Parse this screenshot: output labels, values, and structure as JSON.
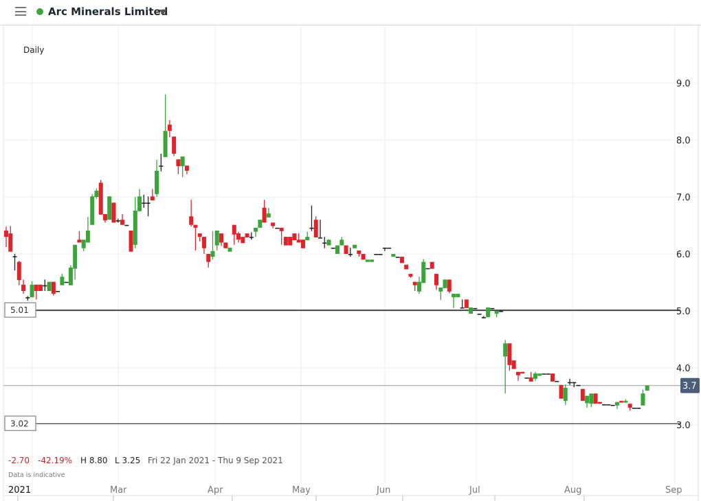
{
  "header": {
    "title": "Arc Minerals Limited",
    "status_color": "#3aa53a",
    "menu_icon": "hamburger-icon",
    "dropdown_icon": "caret-down-icon"
  },
  "chart_data": {
    "type": "candlestick",
    "interval_label": "Daily",
    "y_ticks": [
      "9.0",
      "8.0",
      "7.0",
      "6.0",
      "5.0",
      "4.0",
      "3.0"
    ],
    "ylim": [
      2.6,
      9.9
    ],
    "x_labels": [
      "2021",
      "Mar",
      "Apr",
      "May",
      "Jun",
      "Jul",
      "Aug",
      "Sep"
    ],
    "grid": true,
    "colors": {
      "up": "#3aa53a",
      "down": "#e0232b",
      "unchanged": "#222222",
      "current_price_badge": "#4b5d7a"
    },
    "horizontal_lines": [
      {
        "label": "5.01",
        "value": 5.01
      },
      {
        "label": "3.02",
        "value": 3.02
      }
    ],
    "current_price": {
      "label": "3.7",
      "value": 3.69
    },
    "stats": {
      "change": "-2.70",
      "change_pct": "-42.19%",
      "high": "H 8.80",
      "low": "L 3.25",
      "range": "Fri 22 Jan 2021 - Thu 9 Sep 2021"
    },
    "disclaimer": "Data is indicative",
    "columns": [
      "date",
      "open",
      "high",
      "low",
      "close"
    ],
    "candles": [
      [
        "2021-01-22",
        6.41,
        6.48,
        6.12,
        6.3
      ],
      [
        "2021-01-25",
        6.36,
        6.49,
        6.04,
        6.04
      ],
      [
        "2021-01-26",
        5.96,
        6.0,
        5.71,
        5.96
      ],
      [
        "2021-01-27",
        5.86,
        5.88,
        5.45,
        5.54
      ],
      [
        "2021-01-28",
        5.46,
        5.55,
        5.3,
        5.35
      ],
      [
        "2021-01-29",
        5.24,
        5.26,
        5.18,
        5.24
      ],
      [
        "2021-02-01",
        5.24,
        5.52,
        5.24,
        5.46
      ],
      [
        "2021-02-02",
        5.46,
        5.46,
        5.2,
        5.35
      ],
      [
        "2021-02-03",
        5.46,
        5.46,
        5.35,
        5.35
      ],
      [
        "2021-02-04",
        5.45,
        5.55,
        5.35,
        5.45
      ],
      [
        "2021-02-05",
        5.35,
        5.51,
        5.35,
        5.51
      ],
      [
        "2021-02-08",
        5.51,
        5.51,
        5.27,
        5.3
      ],
      [
        "2021-02-09",
        5.35,
        5.35,
        5.35,
        5.35
      ],
      [
        "2021-02-10",
        5.45,
        5.65,
        5.45,
        5.6
      ],
      [
        "2021-02-11",
        5.51,
        5.51,
        5.51,
        5.51
      ],
      [
        "2021-02-12",
        5.45,
        5.8,
        5.45,
        5.76
      ],
      [
        "2021-02-15",
        5.74,
        6.16,
        5.55,
        6.16
      ],
      [
        "2021-02-16",
        6.25,
        6.4,
        6.2,
        6.2
      ],
      [
        "2021-02-17",
        6.1,
        6.25,
        6.05,
        6.25
      ],
      [
        "2021-02-18",
        6.2,
        6.65,
        6.2,
        6.41
      ],
      [
        "2021-02-19",
        6.51,
        7.05,
        6.51,
        7.01
      ],
      [
        "2021-02-22",
        7.0,
        7.15,
        6.97,
        7.11
      ],
      [
        "2021-02-23",
        7.25,
        7.3,
        6.69,
        6.69
      ],
      [
        "2021-02-24",
        6.7,
        6.7,
        6.55,
        6.59
      ],
      [
        "2021-02-25",
        6.6,
        7.01,
        6.6,
        7.01
      ],
      [
        "2021-02-26",
        6.9,
        6.9,
        6.55,
        6.55
      ],
      [
        "2021-03-01",
        6.59,
        6.62,
        6.55,
        6.59
      ],
      [
        "2021-03-02",
        6.6,
        6.7,
        6.51,
        6.51
      ],
      [
        "2021-03-03",
        6.51,
        6.51,
        6.51,
        6.51
      ],
      [
        "2021-03-04",
        6.41,
        6.41,
        6.04,
        6.04
      ],
      [
        "2021-03-05",
        6.16,
        7.0,
        6.1,
        6.76
      ],
      [
        "2021-03-08",
        6.75,
        7.14,
        6.75,
        7.01
      ],
      [
        "2021-03-09",
        6.9,
        7.04,
        6.81,
        6.9
      ],
      [
        "2021-03-10",
        6.9,
        7.01,
        6.66,
        6.9
      ],
      [
        "2021-03-11",
        7.01,
        7.14,
        6.94,
        6.94
      ],
      [
        "2021-03-12",
        7.05,
        7.65,
        7.0,
        7.46
      ],
      [
        "2021-03-15",
        7.55,
        7.76,
        7.45,
        7.55
      ],
      [
        "2021-03-16",
        7.7,
        8.8,
        7.7,
        8.16
      ],
      [
        "2021-03-17",
        8.27,
        8.35,
        8.05,
        8.16
      ],
      [
        "2021-03-18",
        8.06,
        8.06,
        7.72,
        7.76
      ],
      [
        "2021-03-19",
        7.66,
        7.66,
        7.4,
        7.54
      ],
      [
        "2021-03-22",
        7.54,
        7.71,
        7.35,
        7.71
      ],
      [
        "2021-03-23",
        7.55,
        7.55,
        7.4,
        7.46
      ],
      [
        "2021-03-24",
        6.66,
        6.95,
        6.48,
        6.51
      ],
      [
        "2021-03-25",
        6.51,
        6.51,
        6.06,
        6.46
      ],
      [
        "2021-03-26",
        6.36,
        6.36,
        6.22,
        6.3
      ],
      [
        "2021-03-29",
        6.3,
        6.3,
        6.0,
        6.1
      ],
      [
        "2021-03-30",
        6.0,
        6.0,
        5.76,
        5.86
      ],
      [
        "2021-03-31",
        5.95,
        6.4,
        5.9,
        6.05
      ],
      [
        "2021-04-01",
        6.15,
        6.41,
        6.06,
        6.41
      ],
      [
        "2021-04-06",
        6.36,
        6.36,
        6.14,
        6.2
      ],
      [
        "2021-04-07",
        6.2,
        6.2,
        6.1,
        6.1
      ],
      [
        "2021-04-08",
        6.04,
        6.11,
        6.04,
        6.11
      ],
      [
        "2021-04-09",
        6.51,
        6.51,
        6.16,
        6.34
      ],
      [
        "2021-04-12",
        6.36,
        6.39,
        6.2,
        6.25
      ],
      [
        "2021-04-13",
        6.3,
        6.3,
        6.19,
        6.19
      ],
      [
        "2021-04-14",
        6.36,
        6.36,
        6.29,
        6.29
      ],
      [
        "2021-04-15",
        6.3,
        6.38,
        6.25,
        6.3
      ],
      [
        "2021-04-16",
        6.39,
        6.46,
        6.3,
        6.46
      ],
      [
        "2021-04-19",
        6.46,
        6.6,
        6.46,
        6.6
      ],
      [
        "2021-04-20",
        6.81,
        6.95,
        6.55,
        6.55
      ],
      [
        "2021-04-21",
        6.64,
        6.81,
        6.64,
        6.71
      ],
      [
        "2021-04-22",
        6.55,
        6.55,
        6.45,
        6.49
      ],
      [
        "2021-04-23",
        6.46,
        6.46,
        6.46,
        6.46
      ],
      [
        "2021-04-26",
        6.46,
        6.46,
        6.16,
        6.4
      ],
      [
        "2021-04-27",
        6.3,
        6.3,
        6.15,
        6.15
      ],
      [
        "2021-04-28",
        6.3,
        6.3,
        6.15,
        6.15
      ],
      [
        "2021-04-29",
        6.36,
        6.36,
        6.24,
        6.24
      ],
      [
        "2021-04-30",
        6.25,
        6.36,
        6.2,
        6.2
      ],
      [
        "2021-05-04",
        6.25,
        6.25,
        6.1,
        6.1
      ],
      [
        "2021-05-05",
        6.24,
        6.39,
        6.24,
        6.3
      ],
      [
        "2021-05-06",
        6.46,
        6.85,
        6.4,
        6.46
      ],
      [
        "2021-05-07",
        6.6,
        6.66,
        6.29,
        6.29
      ],
      [
        "2021-05-10",
        6.29,
        6.6,
        6.29,
        6.29
      ],
      [
        "2021-05-11",
        6.2,
        6.3,
        6.1,
        6.2
      ],
      [
        "2021-05-12",
        6.15,
        6.25,
        6.15,
        6.25
      ],
      [
        "2021-05-13",
        6.11,
        6.11,
        6.11,
        6.11
      ],
      [
        "2021-05-14",
        6.0,
        6.15,
        6.0,
        6.15
      ],
      [
        "2021-05-17",
        6.15,
        6.3,
        6.15,
        6.25
      ],
      [
        "2021-05-18",
        6.15,
        6.15,
        6.0,
        6.0
      ],
      [
        "2021-05-19",
        6.0,
        6.11,
        5.95,
        6.0
      ],
      [
        "2021-05-20",
        6.1,
        6.16,
        6.1,
        6.16
      ],
      [
        "2021-05-21",
        6.06,
        6.06,
        5.95,
        6.0
      ],
      [
        "2021-05-24",
        6.0,
        6.0,
        5.9,
        5.9
      ],
      [
        "2021-05-25",
        5.86,
        5.9,
        5.86,
        5.9
      ],
      [
        "2021-05-26",
        5.86,
        5.9,
        5.86,
        5.9
      ],
      [
        "2021-05-27",
        6.0,
        6.0,
        6.0,
        6.0
      ],
      [
        "2021-05-28",
        6.0,
        6.0,
        6.0,
        6.0
      ],
      [
        "2021-06-01",
        6.11,
        6.11,
        6.05,
        6.11
      ],
      [
        "2021-06-02",
        6.11,
        6.11,
        6.11,
        6.11
      ],
      [
        "2021-06-03",
        5.95,
        6.0,
        5.95,
        6.0
      ],
      [
        "2021-06-04",
        5.95,
        5.95,
        5.95,
        5.95
      ],
      [
        "2021-06-07",
        5.95,
        5.95,
        5.84,
        5.84
      ],
      [
        "2021-06-08",
        5.81,
        5.81,
        5.73,
        5.73
      ],
      [
        "2021-06-09",
        5.65,
        5.65,
        5.58,
        5.6
      ],
      [
        "2021-06-10",
        5.51,
        5.51,
        5.35,
        5.45
      ],
      [
        "2021-06-11",
        5.34,
        5.6,
        5.3,
        5.51
      ],
      [
        "2021-06-14",
        5.49,
        5.91,
        5.49,
        5.86
      ],
      [
        "2021-06-15",
        5.75,
        5.75,
        5.75,
        5.75
      ],
      [
        "2021-06-16",
        5.86,
        5.86,
        5.74,
        5.74
      ],
      [
        "2021-06-17",
        5.65,
        5.65,
        5.37,
        5.45
      ],
      [
        "2021-06-18",
        5.34,
        5.41,
        5.19,
        5.41
      ],
      [
        "2021-06-21",
        5.4,
        5.55,
        5.4,
        5.55
      ],
      [
        "2021-06-22",
        5.55,
        5.55,
        5.31,
        5.34
      ],
      [
        "2021-06-23",
        5.24,
        5.3,
        5.05,
        5.3
      ],
      [
        "2021-06-24",
        5.24,
        5.3,
        5.24,
        5.3
      ],
      [
        "2021-06-25",
        5.06,
        5.2,
        5.06,
        5.06
      ],
      [
        "2021-06-28",
        5.2,
        5.2,
        5.05,
        5.05
      ],
      [
        "2021-06-29",
        4.95,
        5.06,
        4.95,
        5.06
      ],
      [
        "2021-06-30",
        5.05,
        5.05,
        5.05,
        5.05
      ],
      [
        "2021-07-01",
        4.95,
        4.95,
        4.95,
        4.95
      ],
      [
        "2021-07-02",
        4.89,
        4.91,
        4.87,
        4.89
      ],
      [
        "2021-07-05",
        4.89,
        5.06,
        4.89,
        5.06
      ],
      [
        "2021-07-06",
        5.05,
        5.05,
        5.05,
        5.05
      ],
      [
        "2021-07-07",
        4.95,
        5.0,
        4.89,
        5.0
      ],
      [
        "2021-07-08",
        5.0,
        5.0,
        5.0,
        5.0
      ],
      [
        "2021-07-09",
        4.2,
        4.49,
        3.55,
        4.43
      ],
      [
        "2021-07-12",
        4.43,
        4.43,
        3.95,
        4.05
      ],
      [
        "2021-07-13",
        4.13,
        4.13,
        3.98,
        3.98
      ],
      [
        "2021-07-14",
        3.93,
        3.93,
        3.77,
        3.87
      ],
      [
        "2021-07-15",
        3.93,
        3.93,
        3.9,
        3.9
      ],
      [
        "2021-07-16",
        3.83,
        3.83,
        3.83,
        3.83
      ],
      [
        "2021-07-19",
        3.83,
        3.93,
        3.76,
        3.76
      ],
      [
        "2021-07-20",
        3.81,
        3.93,
        3.77,
        3.9
      ],
      [
        "2021-07-21",
        3.86,
        3.9,
        3.86,
        3.9
      ],
      [
        "2021-07-22",
        3.9,
        3.9,
        3.9,
        3.9
      ],
      [
        "2021-07-23",
        3.9,
        3.9,
        3.9,
        3.9
      ],
      [
        "2021-07-26",
        3.9,
        3.9,
        3.76,
        3.76
      ],
      [
        "2021-07-27",
        3.77,
        3.77,
        3.77,
        3.77
      ],
      [
        "2021-07-28",
        3.7,
        3.7,
        3.46,
        3.46
      ],
      [
        "2021-07-29",
        3.42,
        3.71,
        3.35,
        3.65
      ],
      [
        "2021-07-30",
        3.75,
        3.81,
        3.7,
        3.75
      ],
      [
        "2021-08-02",
        3.75,
        3.75,
        3.66,
        3.75
      ],
      [
        "2021-08-03",
        3.7,
        3.7,
        3.7,
        3.7
      ],
      [
        "2021-08-04",
        3.63,
        3.63,
        3.42,
        3.42
      ],
      [
        "2021-08-05",
        3.38,
        3.51,
        3.3,
        3.51
      ],
      [
        "2021-08-06",
        3.37,
        3.55,
        3.31,
        3.55
      ],
      [
        "2021-08-09",
        3.55,
        3.55,
        3.37,
        3.37
      ],
      [
        "2021-08-10",
        3.4,
        3.4,
        3.37,
        3.37
      ],
      [
        "2021-08-11",
        3.36,
        3.36,
        3.36,
        3.36
      ],
      [
        "2021-08-12",
        3.36,
        3.36,
        3.36,
        3.36
      ],
      [
        "2021-08-13",
        3.35,
        3.35,
        3.35,
        3.35
      ],
      [
        "2021-08-16",
        3.34,
        3.4,
        3.28,
        3.4
      ],
      [
        "2021-08-17",
        3.42,
        3.42,
        3.39,
        3.39
      ],
      [
        "2021-08-18",
        3.39,
        3.45,
        3.39,
        3.42
      ],
      [
        "2021-08-19",
        3.37,
        3.37,
        3.25,
        3.3
      ],
      [
        "2021-08-20",
        3.3,
        3.3,
        3.3,
        3.3
      ],
      [
        "2021-08-23",
        3.3,
        3.3,
        3.3,
        3.3
      ],
      [
        "2021-08-24",
        3.34,
        3.62,
        3.34,
        3.55
      ],
      [
        "2021-08-25",
        3.6,
        3.69,
        3.6,
        3.69
      ]
    ]
  }
}
